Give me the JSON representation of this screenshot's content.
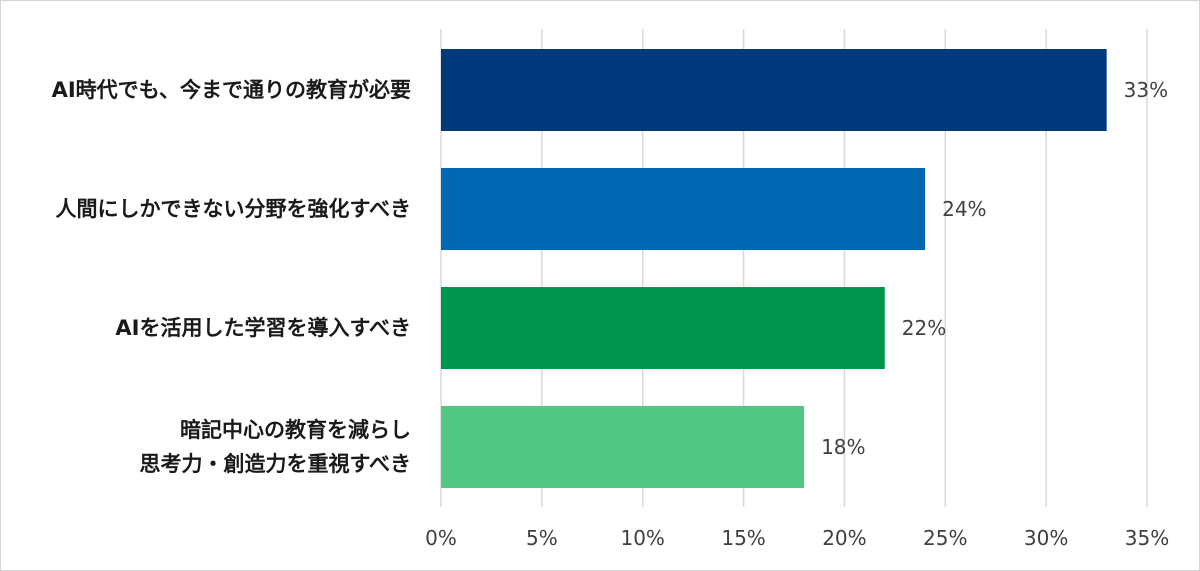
{
  "chart_data": {
    "type": "bar",
    "orientation": "horizontal",
    "categories": [
      [
        "AI時代でも、今まで通りの教育が必要"
      ],
      [
        "人間にしかできない分野を強化すべき"
      ],
      [
        "AIを活用した学習を導入すべき"
      ],
      [
        "暗記中心の教育を減らし",
        "思考力・創造力を重視すべき"
      ]
    ],
    "values": [
      33,
      24,
      22,
      18
    ],
    "value_labels": [
      "33%",
      "24%",
      "22%",
      "18%"
    ],
    "colors": [
      "#003a7d",
      "#0068b2",
      "#009650",
      "#52c683"
    ],
    "xlim": [
      0,
      35
    ],
    "xticks": [
      0,
      5,
      10,
      15,
      20,
      25,
      30,
      35
    ],
    "xtick_labels": [
      "0%",
      "5%",
      "10%",
      "15%",
      "20%",
      "25%",
      "30%",
      "35%"
    ],
    "grid": true,
    "title": "",
    "xlabel": "",
    "ylabel": ""
  }
}
